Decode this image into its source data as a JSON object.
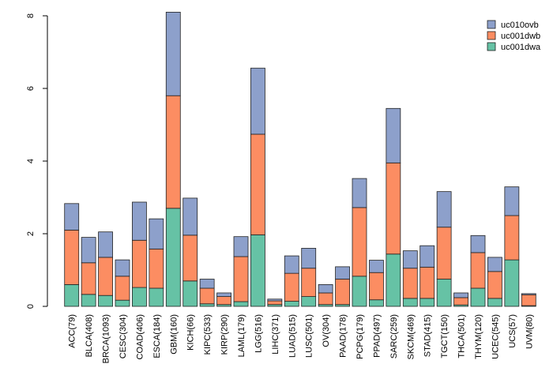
{
  "chart_data": {
    "type": "bar",
    "stacked": true,
    "categories": [
      "ACC(79)",
      "BLCA(408)",
      "BRCA(1093)",
      "CESC(304)",
      "COAD(406)",
      "ESCA(184)",
      "GBM(160)",
      "KICH(66)",
      "KIPC(533)",
      "KIRP(290)",
      "LAML(179)",
      "LGG(516)",
      "LIHC(371)",
      "LUAD(515)",
      "LUSC(501)",
      "OV(304)",
      "PAAD(178)",
      "PCPG(179)",
      "PPAD(497)",
      "SARC(259)",
      "SKCM(469)",
      "STAD(415)",
      "TGCT(150)",
      "THCA(501)",
      "THYM(120)",
      "UCEC(545)",
      "UCS(57)",
      "UVM(80)"
    ],
    "series": [
      {
        "name": "uc001dwa",
        "color": "#66c2a5",
        "values": [
          0.6,
          0.33,
          0.3,
          0.17,
          0.52,
          0.5,
          2.7,
          0.7,
          0.07,
          0.05,
          0.13,
          1.97,
          0.05,
          0.14,
          0.27,
          0.05,
          0.05,
          0.83,
          0.18,
          1.44,
          0.22,
          0.22,
          0.75,
          0.04,
          0.5,
          0.22,
          1.28,
          0.02
        ]
      },
      {
        "name": "uc001dwb",
        "color": "#fc8d62",
        "values": [
          1.5,
          0.87,
          1.05,
          0.66,
          1.3,
          1.08,
          3.1,
          1.26,
          0.43,
          0.22,
          1.24,
          2.77,
          0.1,
          0.77,
          0.78,
          0.32,
          0.7,
          1.89,
          0.75,
          2.51,
          0.83,
          0.86,
          1.43,
          0.2,
          0.98,
          0.74,
          1.22,
          0.3
        ]
      },
      {
        "name": "uc010ovb",
        "color": "#8da0cb",
        "values": [
          0.73,
          0.7,
          0.7,
          0.45,
          1.05,
          0.83,
          2.3,
          1.02,
          0.25,
          0.1,
          0.55,
          1.82,
          0.05,
          0.48,
          0.55,
          0.23,
          0.34,
          0.8,
          0.34,
          1.5,
          0.48,
          0.59,
          0.98,
          0.13,
          0.47,
          0.39,
          0.79,
          0.03
        ]
      }
    ],
    "legend_order": [
      "uc010ovb",
      "uc001dwb",
      "uc001dwa"
    ],
    "legend_position": "top-right",
    "yticks": [
      0,
      2,
      4,
      6,
      8
    ],
    "ylim": [
      0,
      8
    ],
    "grid": false,
    "title": "",
    "xlabel": "",
    "ylabel": ""
  }
}
